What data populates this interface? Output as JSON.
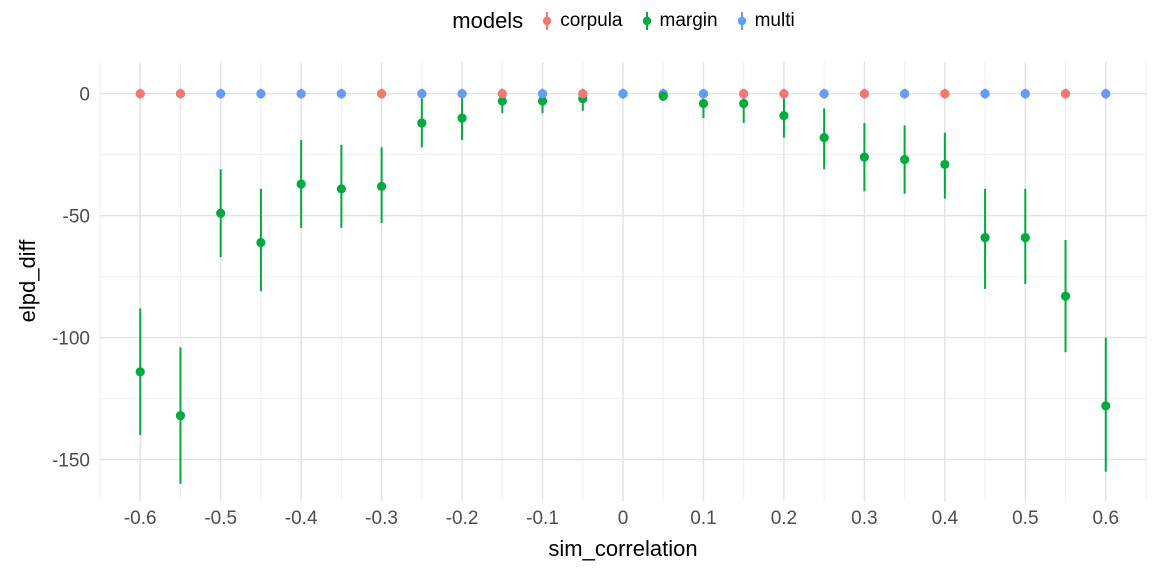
{
  "chart_data": {
    "type": "pointrange-scatter",
    "legend_title": "models",
    "legend_position": "top",
    "grid": true,
    "xlabel": "sim_correlation",
    "ylabel": "elpd_diff",
    "xlim": [
      -0.65,
      0.65
    ],
    "ylim": [
      -167,
      13
    ],
    "x_major_ticks": [
      -0.6,
      -0.5,
      -0.4,
      -0.3,
      -0.2,
      -0.1,
      0,
      0.1,
      0.2,
      0.3,
      0.4,
      0.5,
      0.6
    ],
    "x_tick_labels": [
      "-0.6",
      "-0.5",
      "-0.4",
      "-0.3",
      "-0.2",
      "-0.1",
      "0",
      "0.1",
      "0.2",
      "0.3",
      "0.4",
      "0.5",
      "0.6"
    ],
    "x_minor_step": 0.05,
    "y_major_ticks": [
      0,
      -50,
      -100,
      -150
    ],
    "y_tick_labels": [
      "0",
      "-50",
      "-100",
      "-150"
    ],
    "y_minor_ticks": [
      -25,
      -75,
      -125
    ],
    "x": [
      -0.6,
      -0.55,
      -0.5,
      -0.45,
      -0.4,
      -0.35,
      -0.3,
      -0.25,
      -0.2,
      -0.15,
      -0.1,
      -0.05,
      0,
      0.05,
      0.1,
      0.15,
      0.2,
      0.25,
      0.3,
      0.35,
      0.4,
      0.45,
      0.5,
      0.55,
      0.6
    ],
    "series": [
      {
        "name": "corpula",
        "color": "#F8766D",
        "values": [
          0,
          0,
          0,
          0,
          0,
          0,
          0,
          0,
          0,
          0,
          0,
          0,
          0,
          0,
          0,
          0,
          0,
          0,
          0,
          0,
          0,
          0,
          0,
          0,
          0
        ],
        "upper": [
          2,
          2,
          2,
          2,
          2,
          2,
          2,
          2,
          2,
          2,
          2,
          2,
          2,
          2,
          2,
          2,
          2,
          2,
          2,
          2,
          2,
          2,
          2,
          2,
          2
        ],
        "lower": [
          -2,
          -2,
          -2,
          -2,
          -2,
          -2,
          -2,
          -2,
          -2,
          -2,
          -2,
          -2,
          -2,
          -2,
          -2,
          -2,
          -2,
          -2,
          -2,
          -2,
          -2,
          -2,
          -2,
          -2,
          -2
        ]
      },
      {
        "name": "margin",
        "color": "#00AB3D",
        "values": [
          -114,
          -132,
          -49,
          -61,
          -37,
          -39,
          -38,
          -12,
          -10,
          -3,
          -3,
          -2,
          0,
          -1,
          -4,
          -4,
          -9,
          -18,
          -26,
          -27,
          -29,
          -59,
          -59,
          -83,
          -128
        ],
        "upper": [
          -88,
          -104,
          -31,
          -39,
          -19,
          -21,
          -22,
          -2,
          -1,
          2,
          2,
          2,
          2,
          2,
          0,
          0,
          -1,
          -6,
          -12,
          -13,
          -16,
          -39,
          -39,
          -60,
          -100
        ],
        "lower": [
          -140,
          -160,
          -67,
          -81,
          -55,
          -55,
          -53,
          -22,
          -19,
          -8,
          -8,
          -7,
          -2,
          -3,
          -10,
          -12,
          -18,
          -31,
          -40,
          -41,
          -43,
          -80,
          -78,
          -106,
          -155
        ]
      },
      {
        "name": "multi",
        "color": "#619CFF",
        "values": [
          0,
          0,
          0,
          0,
          0,
          0,
          0,
          0,
          0,
          0,
          0,
          0,
          0,
          0,
          0,
          0,
          0,
          0,
          0,
          0,
          0,
          0,
          0,
          0,
          0
        ],
        "upper": [
          2,
          2,
          2,
          2,
          2,
          2,
          2,
          2,
          2,
          2,
          2,
          2,
          2,
          2,
          2,
          2,
          2,
          2,
          2,
          2,
          2,
          2,
          2,
          2,
          2
        ],
        "lower": [
          -2,
          -2,
          -2,
          -2,
          -2,
          -2,
          -2,
          -2,
          -2,
          -2,
          -2,
          -2,
          -2,
          -2,
          -2,
          -2,
          -2,
          -2,
          -2,
          -2,
          -2,
          -2,
          -2,
          -2,
          -2
        ]
      }
    ],
    "front_series_at_each_x": [
      "corpula",
      "corpula",
      "multi",
      "multi",
      "multi",
      "multi",
      "corpula",
      "multi",
      "multi",
      "corpula",
      "multi",
      "corpula",
      "multi",
      "margin",
      "multi",
      "corpula",
      "corpula",
      "multi",
      "corpula",
      "multi",
      "corpula",
      "multi",
      "multi",
      "corpula",
      "multi"
    ]
  },
  "style_colors": {
    "grid_major": "#E2E2E2",
    "grid_minor": "#EFEFEF",
    "tick_label": "#4D4D4D",
    "axis_title": "#000000"
  }
}
